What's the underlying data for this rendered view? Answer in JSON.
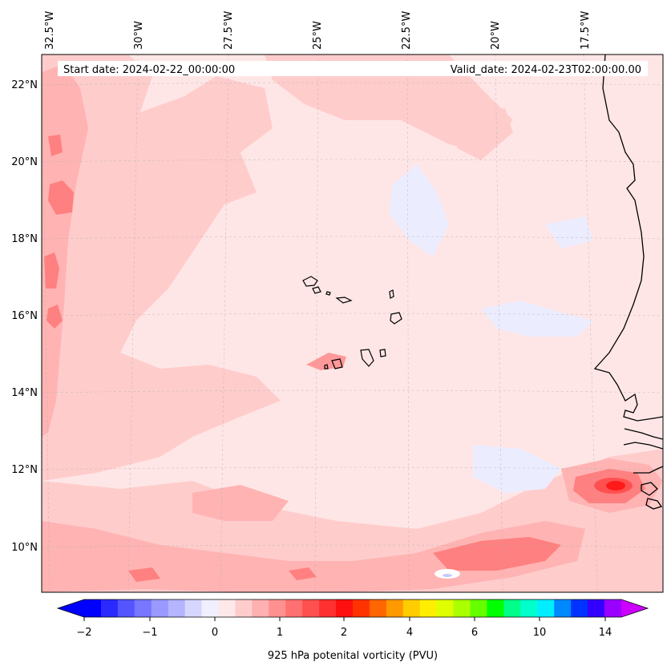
{
  "map": {
    "start_date": "Start date: 2024-02-22_00:00:00",
    "valid_date": "Valid_date: 2024-02-23T02:00:00.00",
    "lon_labels": [
      "32.5°W",
      "30°W",
      "27.5°W",
      "25°W",
      "22.5°W",
      "20°W",
      "17.5°W"
    ],
    "lat_labels": [
      "22°N",
      "20°N",
      "18°N",
      "16°N",
      "14°N",
      "12°N",
      "10°N"
    ],
    "colors": {
      "background_field": "#ffe6e6",
      "light_red": "#ffcccc",
      "mid_red": "#ffb3b3",
      "strong_red": "#ff8080",
      "peak_red": "#ff2b2b",
      "light_blue": "#ececff"
    }
  },
  "colorbar": {
    "label": "925 hPa potenital vorticity (PVU)",
    "tick_labels": [
      "−2",
      "−1",
      "0",
      "1",
      "2",
      "4",
      "6",
      "10",
      "14"
    ],
    "colors": [
      "#0000ff",
      "#2a2aff",
      "#5555ff",
      "#7777ff",
      "#9999ff",
      "#b4b4ff",
      "#d6d6ff",
      "#efefff",
      "#ffe8e8",
      "#ffcccc",
      "#ffb0b0",
      "#ff9090",
      "#ff7070",
      "#ff5050",
      "#ff3030",
      "#ff1010",
      "#ff3300",
      "#ff6600",
      "#ff9900",
      "#ffcc00",
      "#ffee00",
      "#ddff00",
      "#aaff00",
      "#66ff00",
      "#00ff00",
      "#00ff88",
      "#00ffcc",
      "#00eeff",
      "#0088ff",
      "#0033ff",
      "#3300ff",
      "#9900ff"
    ],
    "extend_low": "#0000ff",
    "extend_high": "#cc00ff"
  }
}
